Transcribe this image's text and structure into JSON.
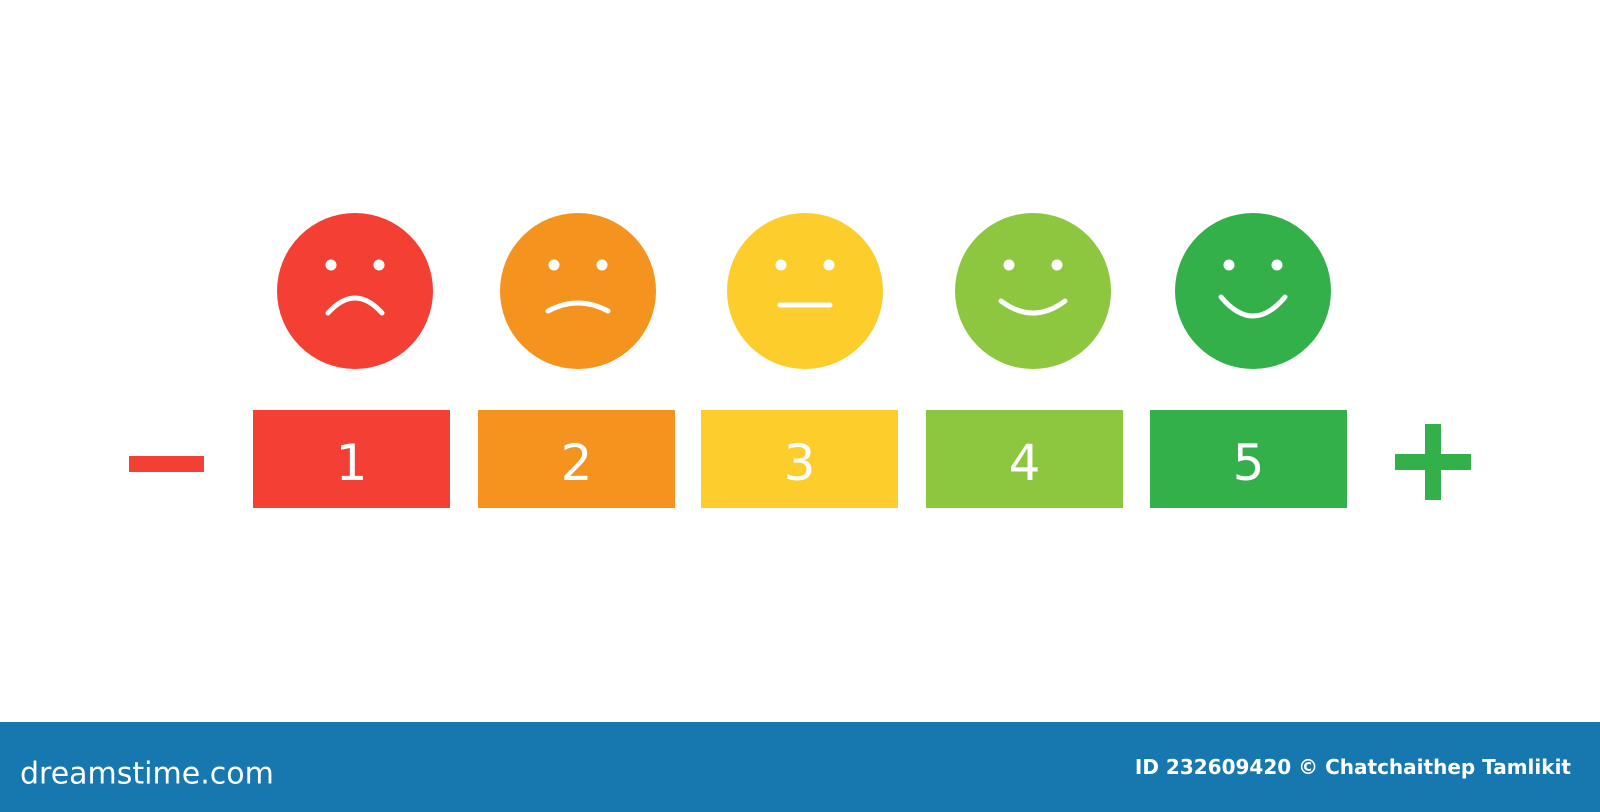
{
  "ratings": [
    {
      "label": 1,
      "color": "#f43f35"
    },
    {
      "label": 2,
      "color": "#f5931f"
    },
    {
      "label": 3,
      "color": "#fdcd2c"
    },
    {
      "label": 4,
      "color": "#8dc63f"
    },
    {
      "label": 5,
      "color": "#33b04a"
    }
  ],
  "footer": {
    "brand": "dreamstime.com",
    "credit": "ID 232609420 © Chatchaithep Tamlikit",
    "color": "#1778b0"
  }
}
